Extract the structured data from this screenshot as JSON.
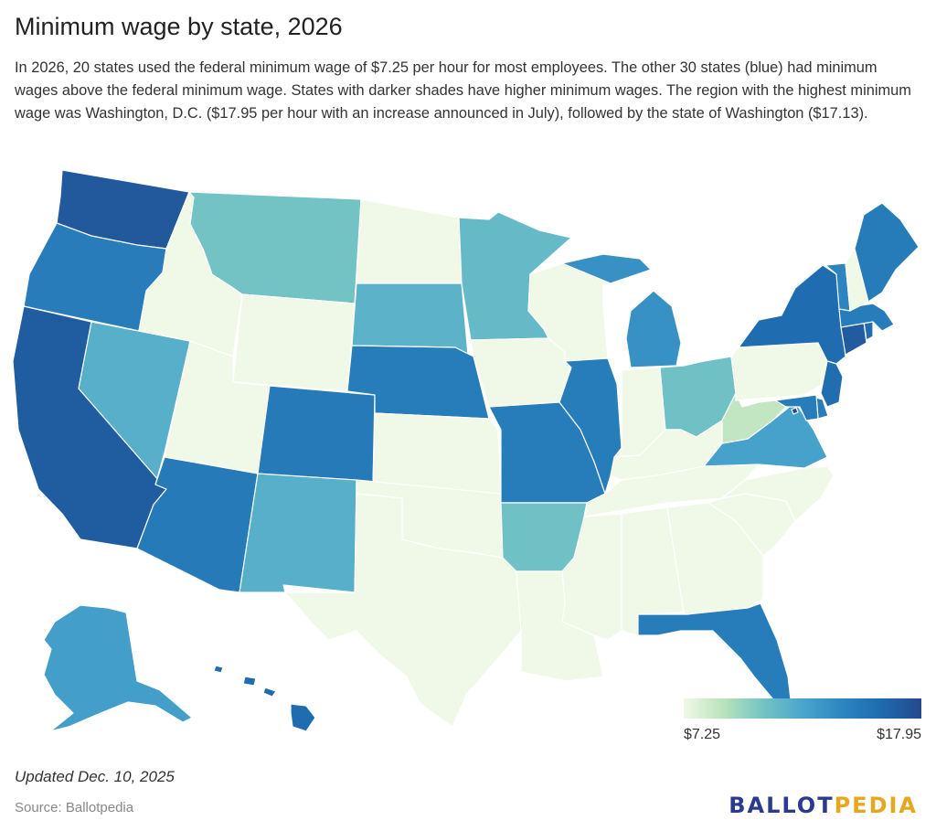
{
  "header": {
    "title": "Minimum wage by state, 2026",
    "description": "In 2026, 20 states used the federal minimum wage of $7.25 per hour for most employees. The other 30 states (blue) had minimum wages above the federal minimum wage. States with darker shades have higher minimum wages. The region with the highest minimum wage was Washington, D.C. ($17.95 per hour with an increase announced in July), followed by the state of Washington ($17.13)."
  },
  "legend": {
    "min_label": "$7.25",
    "max_label": "$17.95",
    "min_value": 7.25,
    "max_value": 17.95
  },
  "colors": {
    "scale": [
      "#f0f8e8",
      "#b9e3bb",
      "#74c4c4",
      "#4aa5cc",
      "#2c86c0",
      "#1e6aae",
      "#234a8c"
    ],
    "border": "#ffffff",
    "logo_primary": "#2b3a8f",
    "logo_accent": "#e8a61e"
  },
  "footer": {
    "updated": "Updated Dec. 10, 2025",
    "source": "Source: Ballotpedia",
    "logo_part1": "BALLOT",
    "logo_part2": "PEDIA"
  },
  "map_data": {
    "states": [
      {
        "id": "WA",
        "name": "Washington",
        "wage": 17.13
      },
      {
        "id": "OR",
        "name": "Oregon",
        "wage": 15.05
      },
      {
        "id": "CA",
        "name": "California",
        "wage": 16.9
      },
      {
        "id": "NV",
        "name": "Nevada",
        "wage": 12.0
      },
      {
        "id": "ID",
        "name": "Idaho",
        "wage": 7.25
      },
      {
        "id": "MT",
        "name": "Montana",
        "wage": 10.85
      },
      {
        "id": "WY",
        "name": "Wyoming",
        "wage": 7.25
      },
      {
        "id": "UT",
        "name": "Utah",
        "wage": 7.25
      },
      {
        "id": "AZ",
        "name": "Arizona",
        "wage": 15.15
      },
      {
        "id": "CO",
        "name": "Colorado",
        "wage": 15.16
      },
      {
        "id": "NM",
        "name": "New Mexico",
        "wage": 12.0
      },
      {
        "id": "ND",
        "name": "North Dakota",
        "wage": 7.25
      },
      {
        "id": "SD",
        "name": "South Dakota",
        "wage": 11.85
      },
      {
        "id": "NE",
        "name": "Nebraska",
        "wage": 15.0
      },
      {
        "id": "KS",
        "name": "Kansas",
        "wage": 7.25
      },
      {
        "id": "OK",
        "name": "Oklahoma",
        "wage": 7.25
      },
      {
        "id": "TX",
        "name": "Texas",
        "wage": 7.25
      },
      {
        "id": "MN",
        "name": "Minnesota",
        "wage": 11.41
      },
      {
        "id": "IA",
        "name": "Iowa",
        "wage": 7.25
      },
      {
        "id": "MO",
        "name": "Missouri",
        "wage": 15.0
      },
      {
        "id": "AR",
        "name": "Arkansas",
        "wage": 11.0
      },
      {
        "id": "LA",
        "name": "Louisiana",
        "wage": 7.25
      },
      {
        "id": "WI",
        "name": "Wisconsin",
        "wage": 7.25
      },
      {
        "id": "IL",
        "name": "Illinois",
        "wage": 15.0
      },
      {
        "id": "MI",
        "name": "Michigan",
        "wage": 13.73
      },
      {
        "id": "IN",
        "name": "Indiana",
        "wage": 7.25
      },
      {
        "id": "OH",
        "name": "Ohio",
        "wage": 11.0
      },
      {
        "id": "KY",
        "name": "Kentucky",
        "wage": 7.25
      },
      {
        "id": "TN",
        "name": "Tennessee",
        "wage": 7.25
      },
      {
        "id": "MS",
        "name": "Mississippi",
        "wage": 7.25
      },
      {
        "id": "AL",
        "name": "Alabama",
        "wage": 7.25
      },
      {
        "id": "GA",
        "name": "Georgia",
        "wage": 7.25
      },
      {
        "id": "FL",
        "name": "Florida",
        "wage": 15.0
      },
      {
        "id": "SC",
        "name": "South Carolina",
        "wage": 7.25
      },
      {
        "id": "NC",
        "name": "North Carolina",
        "wage": 7.25
      },
      {
        "id": "VA",
        "name": "Virginia",
        "wage": 12.77
      },
      {
        "id": "WV",
        "name": "West Virginia",
        "wage": 8.75
      },
      {
        "id": "PA",
        "name": "Pennsylvania",
        "wage": 7.25
      },
      {
        "id": "NY",
        "name": "New York",
        "wage": 16.0
      },
      {
        "id": "VT",
        "name": "Vermont",
        "wage": 14.42
      },
      {
        "id": "NH",
        "name": "New Hampshire",
        "wage": 7.25
      },
      {
        "id": "ME",
        "name": "Maine",
        "wage": 15.1
      },
      {
        "id": "MA",
        "name": "Massachusetts",
        "wage": 15.0
      },
      {
        "id": "RI",
        "name": "Rhode Island",
        "wage": 16.0
      },
      {
        "id": "CT",
        "name": "Connecticut",
        "wage": 16.94
      },
      {
        "id": "NJ",
        "name": "New Jersey",
        "wage": 15.92
      },
      {
        "id": "DE",
        "name": "Delaware",
        "wage": 15.0
      },
      {
        "id": "MD",
        "name": "Maryland",
        "wage": 15.0
      },
      {
        "id": "DC",
        "name": "Washington, D.C.",
        "wage": 17.95
      },
      {
        "id": "AK",
        "name": "Alaska",
        "wage": 13.0
      },
      {
        "id": "HI",
        "name": "Hawaii",
        "wage": 16.0
      }
    ]
  }
}
